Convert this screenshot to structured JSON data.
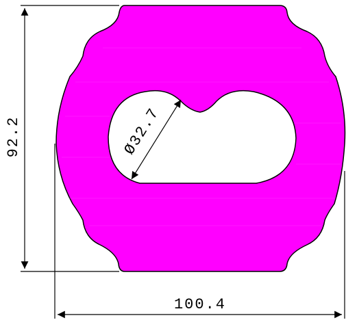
{
  "drawing": {
    "dimensions": {
      "width_label": "100.4",
      "height_label": "92.2",
      "hole_diameter_label": "Ø32.7"
    },
    "colors": {
      "part_fill": "#ff00ff",
      "part_stroke": "#000000",
      "dimension_line": "#000000",
      "background": "#ffffff"
    }
  }
}
